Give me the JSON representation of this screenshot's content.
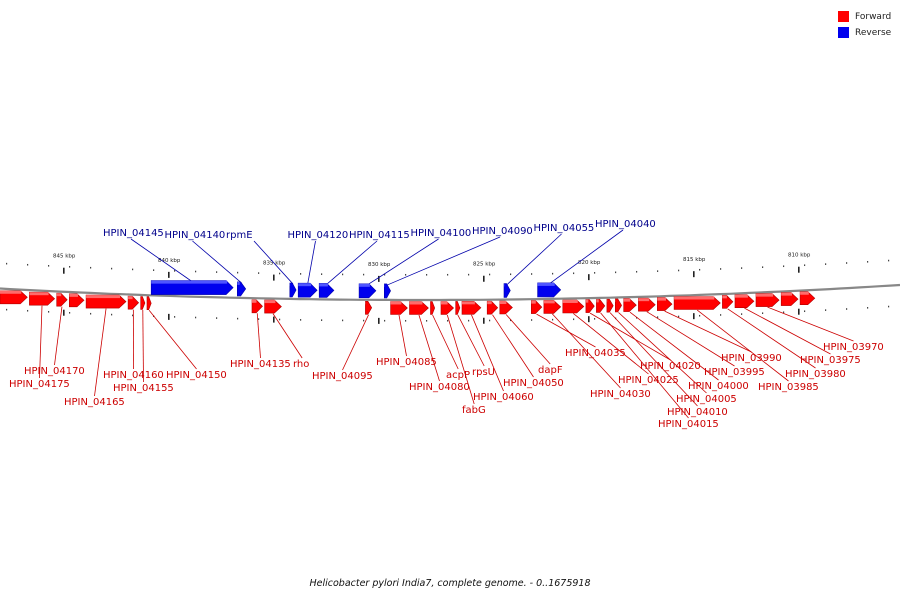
{
  "legend": [
    {
      "label": "Forward",
      "color": "#ff0000"
    },
    {
      "label": "Reverse",
      "color": "#0000ee"
    }
  ],
  "footer": {
    "title": "Helicobacter pylori India7, complete genome. - 0..1675918"
  },
  "chart_data": {
    "type": "genome-map",
    "colors": {
      "forward": "#ff0000",
      "reverse": "#0000ee",
      "forward_label": "#cc0000",
      "reverse_label": "#00008b",
      "backbone": "#888888",
      "tick": "#444444"
    },
    "ticks": [
      {
        "label": "845 kbp",
        "pos_kbp": 845
      },
      {
        "label": "840 kbp",
        "pos_kbp": 840
      },
      {
        "label": "835 kbp",
        "pos_kbp": 835
      },
      {
        "label": "830 kbp",
        "pos_kbp": 830
      },
      {
        "label": "825 kbp",
        "pos_kbp": 825
      },
      {
        "label": "820 kbp",
        "pos_kbp": 820
      },
      {
        "label": "815 kbp",
        "pos_kbp": 815
      },
      {
        "label": "810 kbp",
        "pos_kbp": 810
      }
    ],
    "reverse_genes": [
      {
        "label": "HPIN_04145",
        "start_kbp": 840.8,
        "end_kbp": 836.9
      },
      {
        "label": "HPIN_04140",
        "start_kbp": 836.7,
        "end_kbp": 836.3
      },
      {
        "label": "rpmE",
        "start_kbp": 834.2,
        "end_kbp": 833.9
      },
      {
        "label": "HPIN_04120",
        "start_kbp": 833.8,
        "end_kbp": 832.9
      },
      {
        "label": "HPIN_04115",
        "start_kbp": 832.8,
        "end_kbp": 832.1
      },
      {
        "label": "HPIN_04100",
        "start_kbp": 830.9,
        "end_kbp": 830.1
      },
      {
        "label": "HPIN_04090",
        "start_kbp": 829.7,
        "end_kbp": 829.4
      },
      {
        "label": "HPIN_04055",
        "start_kbp": 824.0,
        "end_kbp": 823.7
      },
      {
        "label": "HPIN_04040",
        "start_kbp": 822.4,
        "end_kbp": 821.3
      }
    ],
    "forward_genes": [
      {
        "label": "",
        "start_kbp": 848.0,
        "end_kbp": 846.7
      },
      {
        "label": "HPIN_04175",
        "start_kbp": 846.6,
        "end_kbp": 845.4
      },
      {
        "label": "HPIN_04170",
        "start_kbp": 845.3,
        "end_kbp": 844.8
      },
      {
        "label": "",
        "start_kbp": 844.7,
        "end_kbp": 844.0
      },
      {
        "label": "HPIN_04165",
        "start_kbp": 843.9,
        "end_kbp": 842.0
      },
      {
        "label": "HPIN_04160",
        "start_kbp": 841.9,
        "end_kbp": 841.4
      },
      {
        "label": "HPIN_04155",
        "start_kbp": 841.3,
        "end_kbp": 841.1
      },
      {
        "label": "HPIN_04150",
        "start_kbp": 841.0,
        "end_kbp": 840.8
      },
      {
        "label": "HPIN_04135",
        "start_kbp": 836.0,
        "end_kbp": 835.5
      },
      {
        "label": "rho",
        "start_kbp": 835.4,
        "end_kbp": 834.6
      },
      {
        "label": "HPIN_04095",
        "start_kbp": 830.6,
        "end_kbp": 830.3
      },
      {
        "label": "HPIN_04085",
        "start_kbp": 829.4,
        "end_kbp": 828.6
      },
      {
        "label": "HPIN_04080",
        "start_kbp": 828.5,
        "end_kbp": 827.6
      },
      {
        "label": "acpP",
        "start_kbp": 827.5,
        "end_kbp": 827.3
      },
      {
        "label": "fabG",
        "start_kbp": 827.0,
        "end_kbp": 826.4
      },
      {
        "label": "rpsU",
        "start_kbp": 826.3,
        "end_kbp": 826.1
      },
      {
        "label": "HPIN_04060",
        "start_kbp": 826.0,
        "end_kbp": 825.1
      },
      {
        "label": "HPIN_04050",
        "start_kbp": 824.8,
        "end_kbp": 824.3
      },
      {
        "label": "dapF",
        "start_kbp": 824.2,
        "end_kbp": 823.6
      },
      {
        "label": "HPIN_04035",
        "start_kbp": 822.7,
        "end_kbp": 822.2
      },
      {
        "label": "HPIN_04030",
        "start_kbp": 822.1,
        "end_kbp": 821.3
      },
      {
        "label": "HPIN_04025",
        "start_kbp": 821.2,
        "end_kbp": 820.2
      },
      {
        "label": "HPIN_04020",
        "start_kbp": 820.1,
        "end_kbp": 819.7
      },
      {
        "label": "HPIN_04015",
        "start_kbp": 819.6,
        "end_kbp": 819.2
      },
      {
        "label": "HPIN_04010",
        "start_kbp": 819.1,
        "end_kbp": 818.8
      },
      {
        "label": "HPIN_04005",
        "start_kbp": 818.7,
        "end_kbp": 818.4
      },
      {
        "label": "HPIN_04000",
        "start_kbp": 818.3,
        "end_kbp": 817.7
      },
      {
        "label": "HPIN_03995",
        "start_kbp": 817.6,
        "end_kbp": 816.8
      },
      {
        "label": "HPIN_03990",
        "start_kbp": 816.7,
        "end_kbp": 816.0
      },
      {
        "label": "HPIN_03985",
        "start_kbp": 815.9,
        "end_kbp": 813.7
      },
      {
        "label": "HPIN_03980",
        "start_kbp": 813.6,
        "end_kbp": 813.1
      },
      {
        "label": "HPIN_03975",
        "start_kbp": 813.0,
        "end_kbp": 812.1
      },
      {
        "label": "HPIN_03970",
        "start_kbp": 812.0,
        "end_kbp": 810.9
      },
      {
        "label": "",
        "start_kbp": 810.8,
        "end_kbp": 810.0
      },
      {
        "label": "",
        "start_kbp": 809.9,
        "end_kbp": 809.2
      }
    ]
  }
}
